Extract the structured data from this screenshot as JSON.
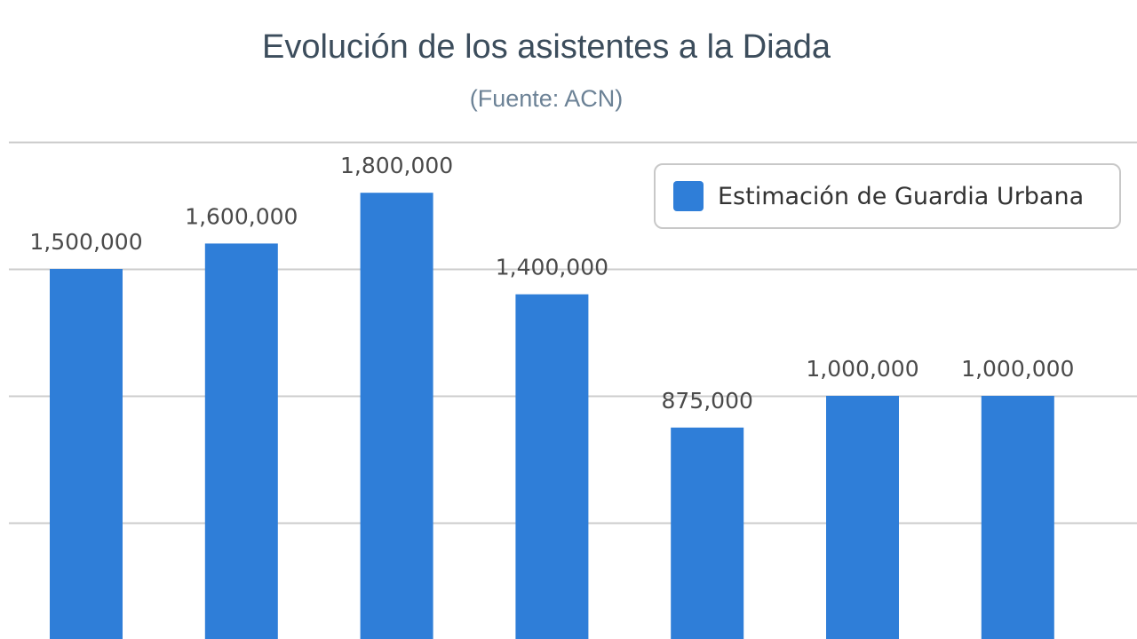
{
  "chart_data": {
    "type": "bar",
    "title": "Evolución de los asistentes a la Diada",
    "subtitle": "(Fuente: ACN)",
    "categories": [
      "",
      "",
      "",
      "",
      "",
      "",
      ""
    ],
    "series": [
      {
        "name": "Estimación de Guardia Urbana",
        "values": [
          1500000,
          1600000,
          1800000,
          1400000,
          875000,
          1000000,
          1000000
        ],
        "data_labels": [
          "1,500,000",
          "1,600,000",
          "1,800,000",
          "1,400,000",
          "875,000",
          "1,000,000",
          "1,000,000"
        ],
        "color": "#2f7ed8"
      }
    ],
    "xlabel": "",
    "ylabel": "",
    "ylim": [
      0,
      2000000
    ],
    "grid": true,
    "grid_color": "#cccccc",
    "legend": "top-right"
  }
}
